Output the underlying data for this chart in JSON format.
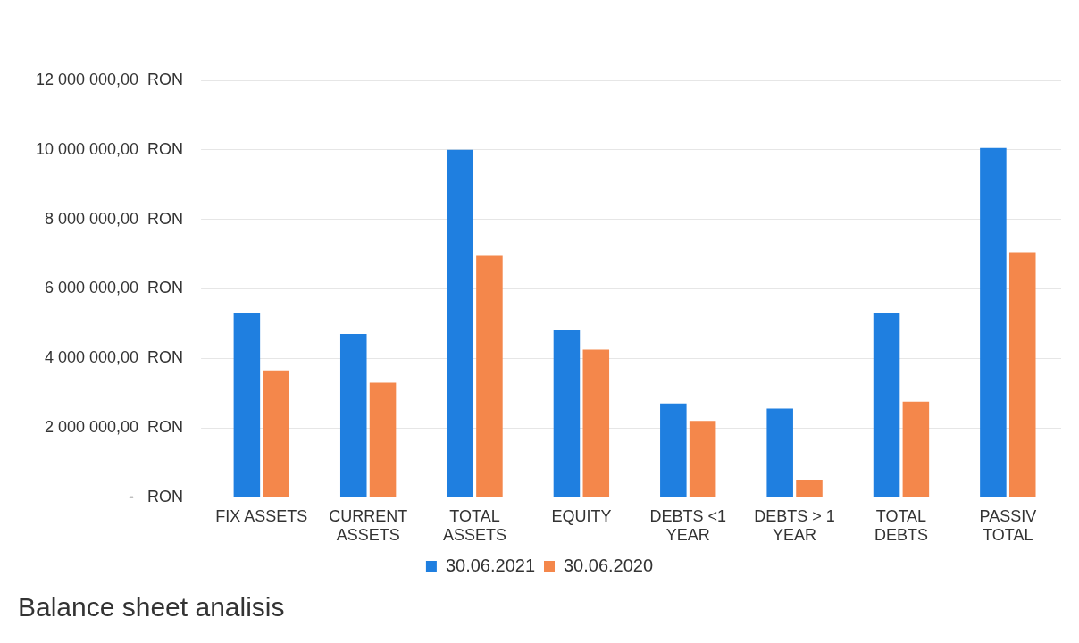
{
  "chart_data": {
    "type": "bar",
    "title": "Balance sheet analisis",
    "categories": [
      "FIX ASSETS",
      "CURRENT ASSETS",
      "TOTAL ASSETS",
      "EQUITY",
      "DEBTS <1 YEAR",
      "DEBTS > 1 YEAR",
      "TOTAL DEBTS",
      "PASSIV TOTAL"
    ],
    "series": [
      {
        "name": "30.06.2021",
        "color": "#1f7fe0",
        "values": [
          5300000,
          4700000,
          10000000,
          4800000,
          2700000,
          2550000,
          5300000,
          10050000
        ]
      },
      {
        "name": "30.06.2020",
        "color": "#f4874b",
        "values": [
          3650000,
          3300000,
          6950000,
          4250000,
          2200000,
          500000,
          2750000,
          7050000
        ]
      }
    ],
    "ylim": [
      0,
      12000000
    ],
    "yticks": [
      {
        "value": 0,
        "label": "-   RON"
      },
      {
        "value": 2000000,
        "label": "2 000 000,00  RON"
      },
      {
        "value": 4000000,
        "label": "4 000 000,00  RON"
      },
      {
        "value": 6000000,
        "label": "6 000 000,00  RON"
      },
      {
        "value": 8000000,
        "label": "8 000 000,00  RON"
      },
      {
        "value": 10000000,
        "label": "10 000 000,00  RON"
      },
      {
        "value": 12000000,
        "label": "12 000 000,00  RON"
      }
    ],
    "grid": "y",
    "legend": "bottom"
  }
}
